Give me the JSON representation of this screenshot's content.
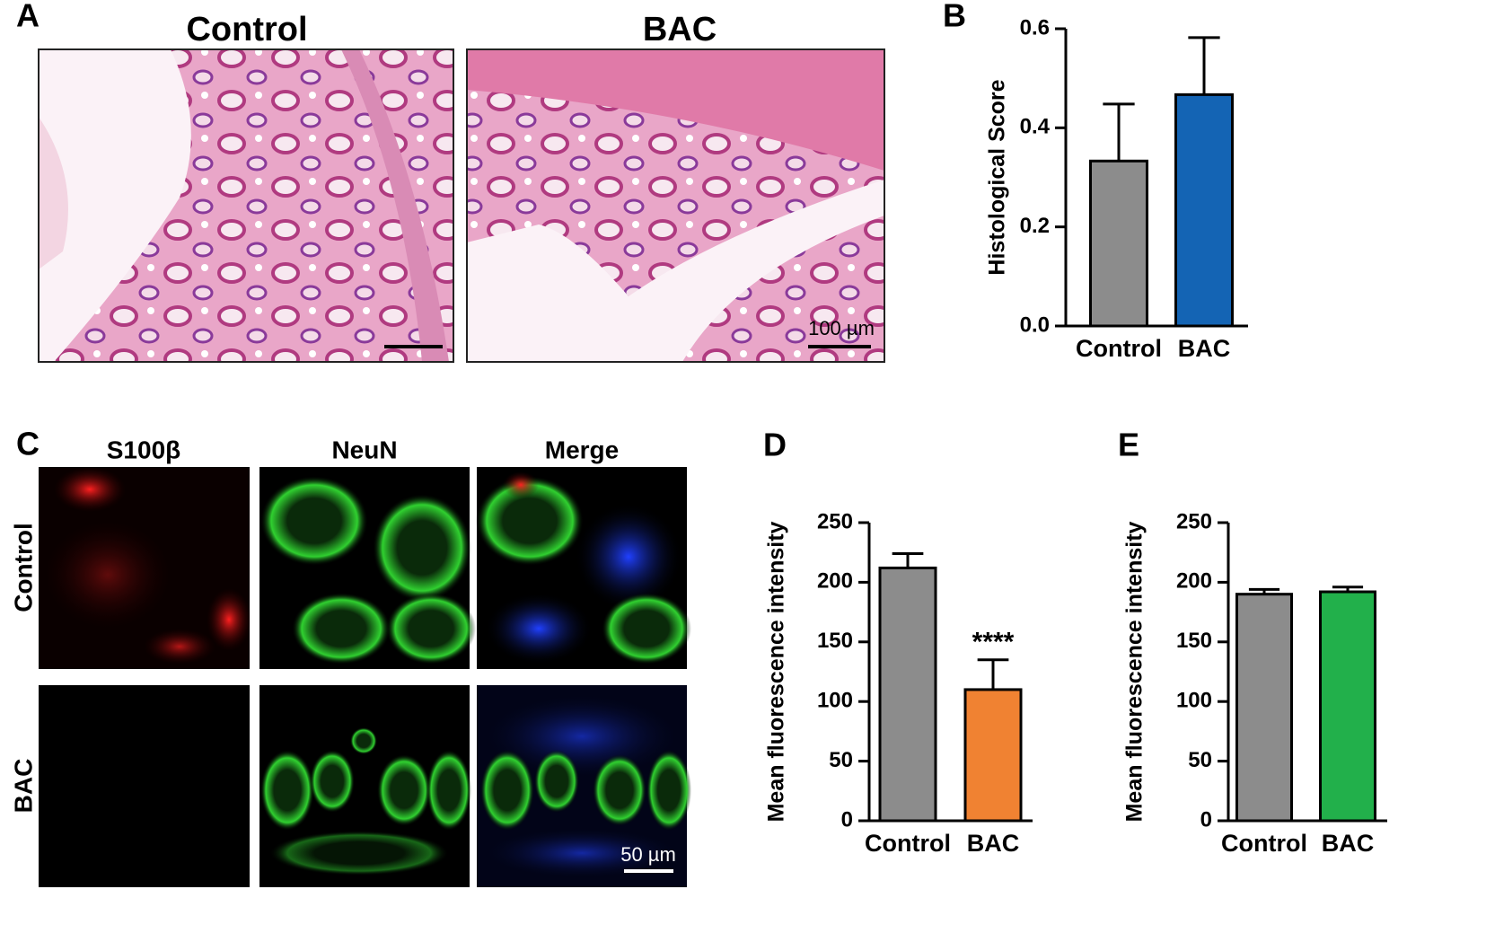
{
  "panel_labels": [
    "A",
    "B",
    "C",
    "D",
    "E"
  ],
  "panel_a": {
    "columns": [
      "Control",
      "BAC"
    ],
    "scale_bar": "100 µm"
  },
  "panel_c": {
    "columns": [
      "S100β",
      "NeuN",
      "Merge"
    ],
    "rows": [
      "Control",
      "BAC"
    ],
    "scale_bar": "50 µm"
  },
  "chart_data": [
    {
      "type": "bar",
      "y_label": "Histological Score",
      "categories": [
        "Control",
        "BAC"
      ],
      "values": [
        0.333,
        0.467
      ],
      "errors": [
        0.115,
        0.115
      ],
      "colors": [
        "#8c8c8c",
        "#1464b4"
      ],
      "ylim": [
        0,
        0.6
      ],
      "yticks": [
        {
          "value": 0,
          "label": "0.0"
        },
        0.2,
        0.4,
        0.6
      ]
    },
    {
      "type": "bar",
      "y_label": "Mean fluorescence intensity",
      "categories": [
        "Control",
        "BAC"
      ],
      "values": [
        212,
        110
      ],
      "errors": [
        12,
        25
      ],
      "colors": [
        "#8c8c8c",
        "#f08232"
      ],
      "annotation": "****",
      "ylim": [
        0,
        250
      ],
      "yticks": [
        0,
        50,
        100,
        150,
        200,
        250
      ]
    },
    {
      "type": "bar",
      "y_label": "Mean fluorescence intensity",
      "categories": [
        "Control",
        "BAC"
      ],
      "values": [
        190,
        192
      ],
      "errors": [
        4,
        4
      ],
      "colors": [
        "#8c8c8c",
        "#22b04b"
      ],
      "ylim": [
        0,
        250
      ],
      "yticks": [
        0,
        50,
        100,
        150,
        200,
        250
      ]
    }
  ]
}
